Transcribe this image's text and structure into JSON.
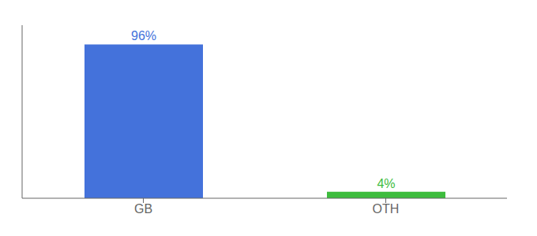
{
  "chart_data": {
    "type": "bar",
    "categories": [
      "GB",
      "OTH"
    ],
    "values": [
      96,
      4
    ],
    "value_labels": [
      "96%",
      "4%"
    ],
    "colors": [
      "#4472db",
      "#3dbc3d"
    ],
    "ylim": [
      0,
      108
    ],
    "data_labels": true,
    "tick_labels": "x",
    "grid": false
  }
}
